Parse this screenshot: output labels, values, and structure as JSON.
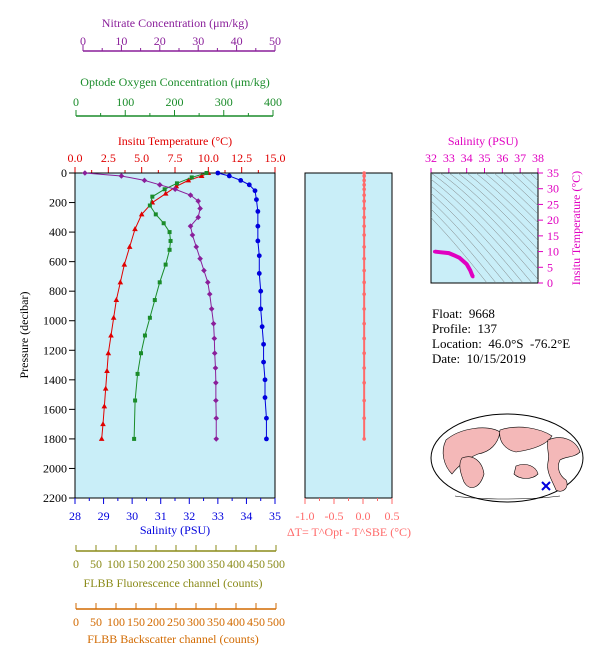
{
  "colors": {
    "nitrate": "#8a1f9a",
    "oxygen": "#1a8c2a",
    "temperature": "#e00000",
    "salinity": "#0000dd",
    "fluorescence": "#8b8b1a",
    "backscatter": "#d26a00",
    "delta": "#ff6a6a",
    "ts": "#e000c0",
    "panel_bg": "#c9eef8"
  },
  "chart_data": [
    {
      "type": "line",
      "title": "",
      "ylabel": "Pressure (decibar)",
      "ylim": [
        2200,
        0
      ],
      "yticks": [
        "0",
        "200",
        "400",
        "600",
        "800",
        "1000",
        "1200",
        "1400",
        "1600",
        "1800",
        "2000",
        "2200"
      ],
      "axes": {
        "nitrate": {
          "label": "Nitrate Concentration (μm/kg)",
          "range": [
            0,
            50
          ],
          "ticks": [
            "0",
            "10",
            "20",
            "30",
            "40",
            "50"
          ]
        },
        "oxygen": {
          "label": "Optode Oxygen Concentration (μm/kg)",
          "range": [
            0,
            400
          ],
          "ticks": [
            "0",
            "100",
            "200",
            "300",
            "400"
          ]
        },
        "temperature": {
          "label": "Insitu Temperature (°C)",
          "range": [
            0,
            15
          ],
          "ticks": [
            "0.0",
            "2.5",
            "5.0",
            "7.5",
            "10.0",
            "12.5",
            "15.0"
          ]
        },
        "salinity": {
          "label": "Salinity (PSU)",
          "range": [
            28,
            35
          ],
          "ticks": [
            "28",
            "29",
            "30",
            "31",
            "32",
            "33",
            "34",
            "35"
          ]
        },
        "fluorescence": {
          "label": "FLBB Fluorescence channel (counts)",
          "range": [
            0,
            500
          ],
          "ticks": [
            "0",
            "50",
            "100",
            "150",
            "200",
            "250",
            "300",
            "350",
            "400",
            "450",
            "500"
          ]
        },
        "backscatter": {
          "label": "FLBB Backscatter channel (counts)",
          "range": [
            0,
            500
          ],
          "ticks": [
            "0",
            "50",
            "100",
            "150",
            "200",
            "250",
            "300",
            "350",
            "400",
            "450",
            "500"
          ]
        }
      },
      "series": [
        {
          "key": "salinity",
          "marker": "circle",
          "x": [
            33.0,
            33.4,
            33.8,
            34.1,
            34.3,
            34.35,
            34.4,
            34.4,
            34.4,
            34.45,
            34.45,
            34.5,
            34.5,
            34.55,
            34.6,
            34.6,
            34.65,
            34.65,
            34.7,
            34.7
          ],
          "y": [
            0,
            20,
            50,
            80,
            120,
            180,
            260,
            360,
            460,
            560,
            680,
            800,
            920,
            1040,
            1160,
            1280,
            1400,
            1520,
            1660,
            1800
          ]
        },
        {
          "key": "temperature",
          "marker": "triangle",
          "x": [
            10.0,
            9.5,
            8.5,
            7.6,
            6.8,
            5.8,
            5.0,
            4.5,
            4.1,
            3.7,
            3.4,
            3.1,
            2.9,
            2.7,
            2.5,
            2.4,
            2.3,
            2.2,
            2.1,
            2.0
          ],
          "y": [
            0,
            20,
            50,
            90,
            140,
            200,
            280,
            380,
            500,
            620,
            740,
            860,
            980,
            1100,
            1220,
            1340,
            1460,
            1580,
            1700,
            1800
          ]
        },
        {
          "key": "oxygen",
          "marker": "square",
          "x": [
            265,
            235,
            205,
            180,
            155,
            150,
            162,
            178,
            190,
            192,
            190,
            182,
            170,
            160,
            150,
            140,
            132,
            125,
            120,
            118
          ],
          "y": [
            0,
            30,
            70,
            110,
            160,
            220,
            280,
            340,
            400,
            460,
            520,
            620,
            740,
            860,
            980,
            1100,
            1220,
            1360,
            1540,
            1800
          ]
        },
        {
          "key": "nitrate",
          "marker": "diamond",
          "x": [
            0.5,
            10,
            16,
            20,
            24,
            28,
            30,
            30.5,
            30,
            28,
            28.5,
            29.5,
            30.5,
            31.5,
            32.5,
            33,
            33.5,
            34,
            34.2,
            34.3,
            34.5,
            34.6,
            34.6,
            34.7,
            34.7
          ],
          "y": [
            0,
            20,
            50,
            80,
            110,
            150,
            190,
            240,
            300,
            360,
            420,
            500,
            580,
            660,
            740,
            820,
            920,
            1020,
            1120,
            1220,
            1320,
            1420,
            1540,
            1660,
            1800
          ]
        }
      ]
    },
    {
      "type": "scatter",
      "xlabel": "ΔT= T^Opt - T^SBE (°C)",
      "xlim": [
        -1.0,
        0.5
      ],
      "xticks": [
        "-1.0",
        "-0.5",
        "0.0",
        "0.5"
      ],
      "x": [
        0.02,
        0.02,
        0.02,
        0.02,
        0.02,
        0.02,
        0.02,
        0.02,
        0.02,
        0.02,
        0.02,
        0.02,
        0.02,
        0.02,
        0.02,
        0.02,
        0.02,
        0.02,
        0.02,
        0.02,
        0.02,
        0.02,
        0.02,
        0.02,
        0.02
      ],
      "y": [
        0,
        20,
        50,
        80,
        110,
        150,
        190,
        240,
        300,
        360,
        420,
        500,
        580,
        660,
        740,
        820,
        920,
        1020,
        1120,
        1220,
        1320,
        1420,
        1540,
        1660,
        1800
      ]
    },
    {
      "type": "scatter",
      "title": "Salinity (PSU)",
      "ylabel": "Insitu Temperature (°C)",
      "xlim": [
        32,
        38
      ],
      "ylim": [
        0,
        35
      ],
      "xticks": [
        "32",
        "33",
        "34",
        "35",
        "36",
        "37",
        "38"
      ],
      "yticks": [
        "0",
        "5",
        "10",
        "15",
        "20",
        "25",
        "30",
        "35"
      ],
      "x": [
        32.2,
        32.5,
        33.0,
        33.3,
        33.6,
        33.8,
        34.0,
        34.1,
        34.2,
        34.25,
        34.3,
        34.35
      ],
      "y": [
        10.0,
        9.8,
        9.5,
        8.8,
        8.0,
        7.0,
        6.0,
        5.0,
        4.0,
        3.3,
        2.6,
        2.0
      ]
    }
  ],
  "info": {
    "float": "Float:  9668",
    "profile": "Profile:  137",
    "location": "Location:  46.0°S  -76.2°E",
    "date": "Date:  10/15/2019"
  },
  "map": {
    "marker_color": "#0000dd"
  }
}
